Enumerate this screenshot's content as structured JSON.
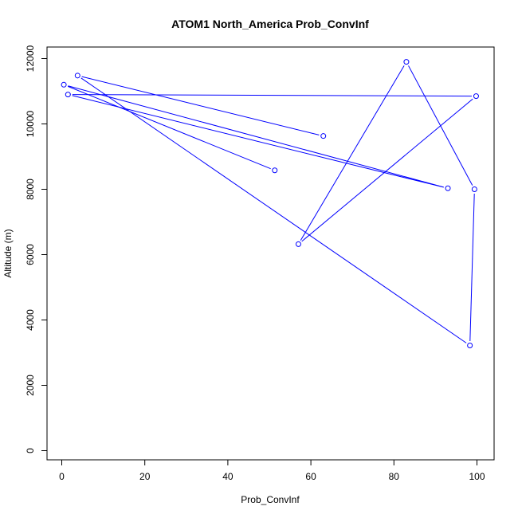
{
  "chart_data": {
    "type": "line",
    "title": "ATOM1 North_America Prob_ConvInf",
    "xlabel": "Prob_ConvInf",
    "ylabel": "Altitude (m)",
    "xlim": [
      0,
      100
    ],
    "ylim": [
      0,
      12000
    ],
    "x_ticks": [
      0,
      20,
      40,
      60,
      80,
      100
    ],
    "y_ticks": [
      0,
      2000,
      4000,
      6000,
      8000,
      10000,
      12000
    ],
    "x_tick_labels": [
      "0",
      "20",
      "40",
      "60",
      "80",
      "100"
    ],
    "y_tick_labels": [
      "0",
      "2000",
      "4000",
      "6000",
      "8000",
      "10000",
      "12000"
    ],
    "grid": false,
    "series_color": "#0000ff",
    "series": [
      {
        "points": [
          {
            "x": 51.3,
            "y": 8580
          },
          {
            "x": 0.5,
            "y": 11200
          },
          {
            "x": 93.0,
            "y": 8030
          },
          {
            "x": 1.5,
            "y": 10900
          },
          {
            "x": 99.8,
            "y": 10850
          },
          {
            "x": 57.0,
            "y": 6320
          },
          {
            "x": 83.0,
            "y": 11900
          },
          {
            "x": 99.4,
            "y": 8000
          },
          {
            "x": 98.3,
            "y": 3220
          },
          {
            "x": 3.8,
            "y": 11480
          }
        ]
      }
    ],
    "trailing_point": {
      "x": 63.0,
      "y": 9630
    }
  }
}
